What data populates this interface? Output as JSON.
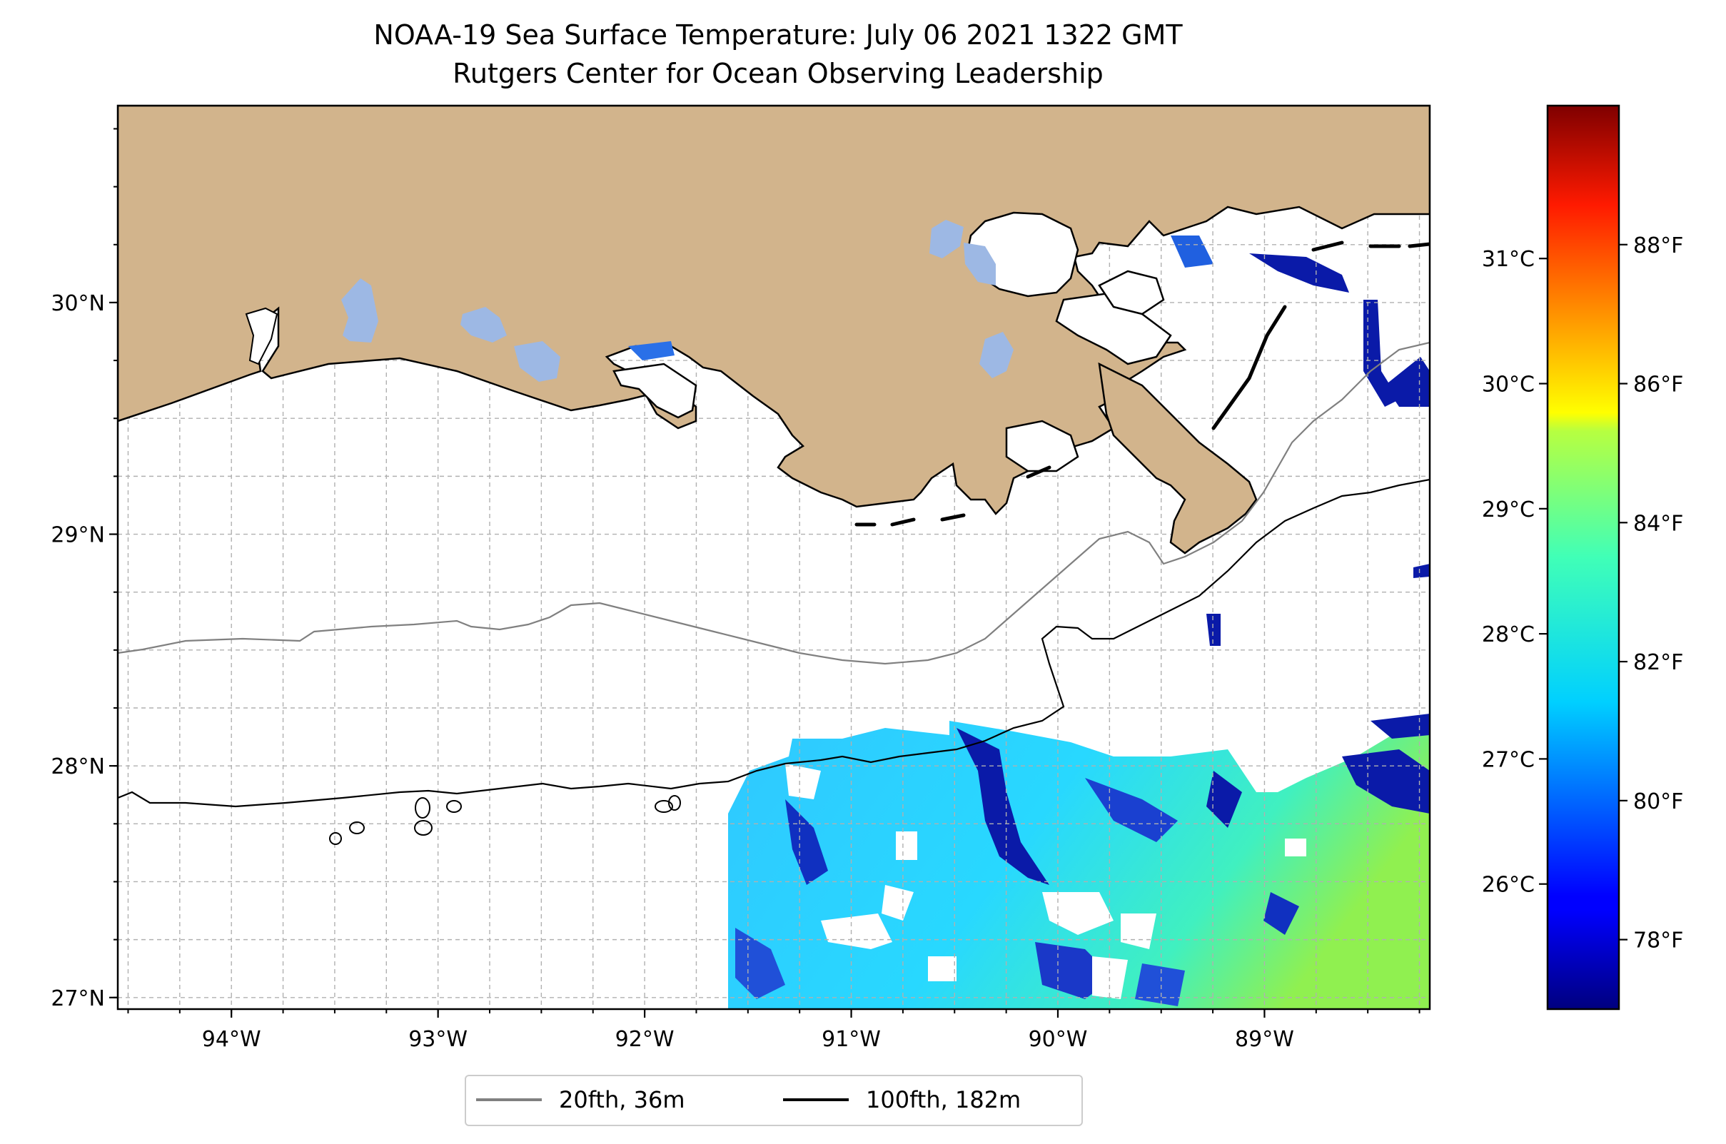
{
  "title": {
    "line1": "NOAA-19 Sea Surface Temperature: July 06 2021 1322 GMT",
    "line2": "Rutgers Center for Ocean Observing Leadership"
  },
  "map": {
    "extent": {
      "lon": [
        -94.55,
        -88.2
      ],
      "lat": [
        26.95,
        30.85
      ]
    },
    "lon_ticks": [
      {
        "value": -94,
        "label": "94°W"
      },
      {
        "value": -93,
        "label": "93°W"
      },
      {
        "value": -92,
        "label": "92°W"
      },
      {
        "value": -91,
        "label": "91°W"
      },
      {
        "value": -90,
        "label": "90°W"
      },
      {
        "value": -89,
        "label": "89°W"
      }
    ],
    "lat_ticks": [
      {
        "value": 27,
        "label": "27°N"
      },
      {
        "value": 28,
        "label": "28°N"
      },
      {
        "value": 29,
        "label": "29°N"
      },
      {
        "value": 30,
        "label": "30°N"
      }
    ],
    "gridlines": "dashed every 0.25°",
    "land_color": "#d2b48c",
    "lake_color": "#9db8e4"
  },
  "colorbar": {
    "colormap": "jet",
    "range_f": [
      77,
      90
    ],
    "f_ticks": [
      {
        "value": 78,
        "label": "78°F"
      },
      {
        "value": 80,
        "label": "80°F"
      },
      {
        "value": 82,
        "label": "82°F"
      },
      {
        "value": 84,
        "label": "84°F"
      },
      {
        "value": 86,
        "label": "86°F"
      },
      {
        "value": 88,
        "label": "88°F"
      }
    ],
    "c_ticks": [
      {
        "value": 26,
        "label": "26°C"
      },
      {
        "value": 27,
        "label": "27°C"
      },
      {
        "value": 28,
        "label": "28°C"
      },
      {
        "value": 29,
        "label": "29°C"
      },
      {
        "value": 30,
        "label": "30°C"
      },
      {
        "value": 31,
        "label": "31°C"
      }
    ]
  },
  "legend": {
    "items": [
      {
        "label": "20fth, 36m",
        "color": "#808080"
      },
      {
        "label": "100fth, 182m",
        "color": "#000000"
      }
    ]
  }
}
